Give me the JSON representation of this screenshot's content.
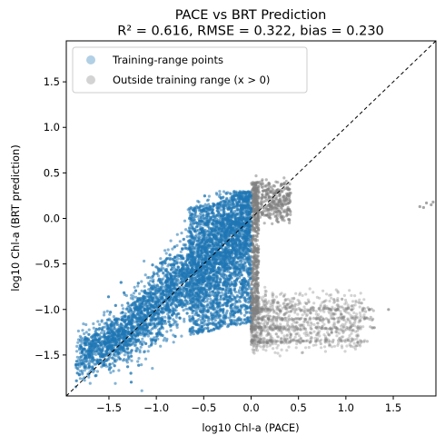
{
  "chart_data": {
    "type": "scatter",
    "title_line1": "PACE vs BRT Prediction",
    "title_line2": "R² = 0.616, RMSE = 0.322, bias = 0.230",
    "xlabel": "log10 Chl-a (PACE)",
    "ylabel": "log10 Chl-a (BRT prediction)",
    "xlim": [
      -1.95,
      1.95
    ],
    "ylim": [
      -1.95,
      1.95
    ],
    "xticks": [
      -1.5,
      -1.0,
      -0.5,
      0.0,
      0.5,
      1.0,
      1.5
    ],
    "xtick_labels": [
      "−1.5",
      "−1.0",
      "−0.5",
      "0.0",
      "0.5",
      "1.0",
      "1.5"
    ],
    "yticks": [
      -1.5,
      -1.0,
      -0.5,
      0.0,
      0.5,
      1.0,
      1.5
    ],
    "ytick_labels": [
      "−1.5",
      "−1.0",
      "−0.5",
      "0.0",
      "0.5",
      "1.0",
      "1.5"
    ],
    "grid": false,
    "legend_position": "upper-left",
    "reference_line": {
      "style": "dashed",
      "slope": 1,
      "intercept": 0,
      "color": "#000000"
    },
    "series": [
      {
        "name": "Training-range points",
        "color": "#1f77b4",
        "approx_x_range": [
          -1.85,
          0.0
        ],
        "approx_y_range": [
          -1.92,
          0.3
        ]
      },
      {
        "name": "Outside training range (x > 0)",
        "color": "#808080",
        "approx_x_range": [
          0.0,
          1.9
        ],
        "approx_y_range": [
          -1.6,
          0.4
        ]
      }
    ]
  }
}
